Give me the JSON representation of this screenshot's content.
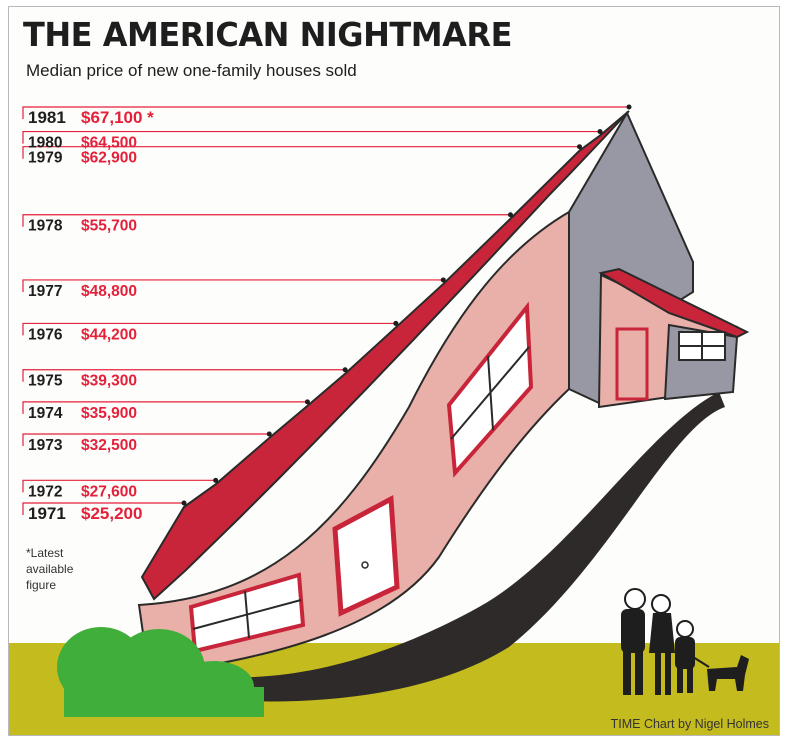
{
  "chart_data": {
    "type": "line",
    "title": "THE AMERICAN NIGHTMARE",
    "subtitle": "Median price of new one-family houses sold",
    "x": [
      1971,
      1972,
      1973,
      1974,
      1975,
      1976,
      1977,
      1978,
      1979,
      1980,
      1981
    ],
    "values": [
      25200,
      27600,
      32500,
      35900,
      39300,
      44200,
      48800,
      55700,
      62900,
      64500,
      67100
    ],
    "labels": [
      "$25,200",
      "$27,600",
      "$32,500",
      "$35,900",
      "$39,300",
      "$44,200",
      "$48,800",
      "$55,700",
      "$62,900",
      "$64,500",
      "$67,100"
    ],
    "ylim": [
      25200,
      67100
    ],
    "footnote_marker": "*",
    "footnote": "*Latest\navailable\nfigure",
    "source": "TIME Chart by Nigel Holmes",
    "colors": {
      "price": "#e5203a",
      "roof": "#c8253a",
      "wall": "#e8b0a8",
      "gable": "#9898a4",
      "ground": "#c4bb1e",
      "bush": "#3fae3a"
    }
  }
}
